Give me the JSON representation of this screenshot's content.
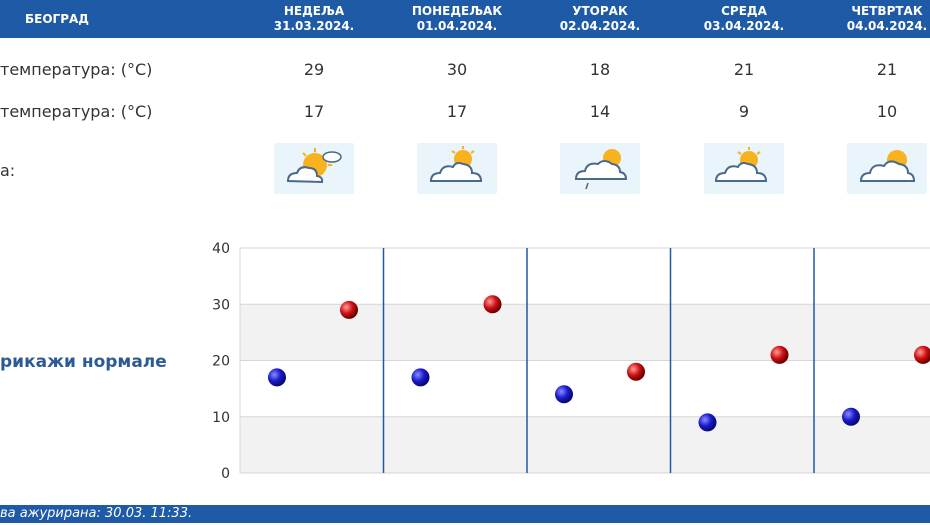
{
  "header": {
    "city": "БЕОГРАД",
    "days": [
      {
        "name": "НЕДЕЉА",
        "date": "31.03.2024."
      },
      {
        "name": "ПОНЕДЕЉАК",
        "date": "01.04.2024."
      },
      {
        "name": "УТОРАК",
        "date": "02.04.2024."
      },
      {
        "name": "СРЕДА",
        "date": "03.04.2024."
      },
      {
        "name": "ЧЕТВРТАК",
        "date": "04.04.2024."
      }
    ]
  },
  "rows": {
    "max_label": "температура: (°C)",
    "min_label": "температура: (°C)",
    "weather_label": "а:"
  },
  "max_temps": [
    "29",
    "30",
    "18",
    "21",
    "21"
  ],
  "min_temps": [
    "17",
    "17",
    "14",
    "9",
    "10"
  ],
  "icons": [
    "sun-cloud-icon",
    "sun-cloud-icon",
    "cloud-rain-sun-icon",
    "sun-cloud-icon",
    "cloud-sun-icon"
  ],
  "show_normals": "рикажи нормале",
  "footer": {
    "updated": "ва ажурирана:  30.03.  11:33."
  },
  "chart_data": {
    "type": "scatter",
    "categories": [
      "31.03.2024.",
      "01.04.2024.",
      "02.04.2024.",
      "03.04.2024.",
      "04.04.2024."
    ],
    "series": [
      {
        "values": [
          17,
          17,
          14,
          9,
          10
        ],
        "color": "#1a1acc"
      },
      {
        "values": [
          29,
          30,
          18,
          21,
          21
        ],
        "color": "#cc1111"
      }
    ],
    "ylim": [
      0,
      40
    ],
    "yticks": [
      0,
      10,
      20,
      30,
      40
    ],
    "grid": true,
    "colors": {
      "band": "#f2f2f2",
      "divider": "#1f5aa6"
    }
  }
}
